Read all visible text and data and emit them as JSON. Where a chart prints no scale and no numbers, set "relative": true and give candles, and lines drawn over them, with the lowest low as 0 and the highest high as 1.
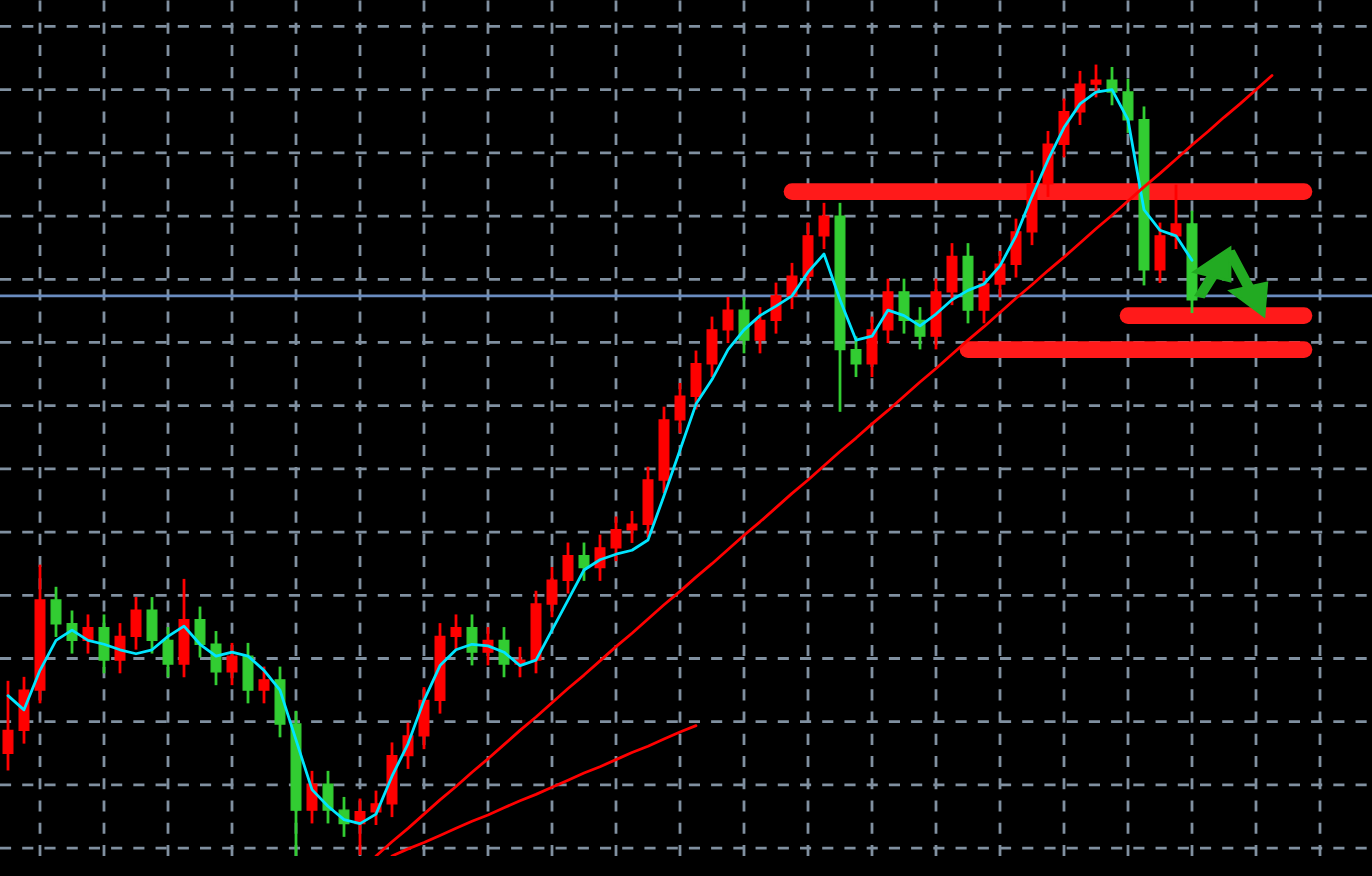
{
  "chart_data": {
    "type": "candlestick",
    "relative": true,
    "tick_labels": false,
    "grid": true,
    "categories": [
      null,
      null,
      null,
      null,
      null,
      null,
      null,
      null,
      null,
      null,
      null,
      null,
      null,
      null,
      null,
      null,
      null,
      null,
      null,
      null,
      null,
      null,
      null,
      null,
      null,
      null,
      null,
      null,
      null,
      null,
      null,
      null,
      null,
      null,
      null,
      null,
      null,
      null,
      null,
      null,
      null,
      null,
      null,
      null,
      null,
      null,
      null,
      null,
      null,
      null,
      null,
      null,
      null,
      null,
      null,
      null,
      null,
      null,
      null,
      null,
      null,
      null,
      null,
      null,
      null,
      null,
      null,
      null,
      null,
      null,
      null,
      null,
      null,
      null,
      null,
      null,
      null,
      null,
      null,
      null,
      null,
      null
    ],
    "ohlc": [
      [
        0.13,
        0.22,
        0.11,
        0.159
      ],
      [
        0.159,
        0.225,
        0.144,
        0.21
      ],
      [
        0.21,
        0.367,
        0.195,
        0.324
      ],
      [
        0.324,
        0.339,
        0.279,
        0.294
      ],
      [
        0.294,
        0.309,
        0.258,
        0.273
      ],
      [
        0.273,
        0.304,
        0.258,
        0.289
      ],
      [
        0.289,
        0.304,
        0.233,
        0.248
      ],
      [
        0.248,
        0.293,
        0.233,
        0.278
      ],
      [
        0.278,
        0.326,
        0.263,
        0.311
      ],
      [
        0.311,
        0.326,
        0.258,
        0.273
      ],
      [
        0.273,
        0.288,
        0.228,
        0.243
      ],
      [
        0.243,
        0.349,
        0.228,
        0.299
      ],
      [
        0.299,
        0.314,
        0.253,
        0.268
      ],
      [
        0.268,
        0.283,
        0.218,
        0.233
      ],
      [
        0.233,
        0.268,
        0.218,
        0.253
      ],
      [
        0.253,
        0.268,
        0.195,
        0.21
      ],
      [
        0.21,
        0.238,
        0.195,
        0.223
      ],
      [
        0.223,
        0.238,
        0.152,
        0.167
      ],
      [
        0.167,
        0.182,
        0,
        0.058
      ],
      [
        0.058,
        0.106,
        0.043,
        0.091
      ],
      [
        0.091,
        0.106,
        0.043,
        0.058
      ],
      [
        0.058,
        0.073,
        0.026,
        0.041
      ],
      [
        0.041,
        0.071,
        0.003,
        0.056
      ],
      [
        0.056,
        0.081,
        0.041,
        0.066
      ],
      [
        0.066,
        0.142,
        0.051,
        0.127
      ],
      [
        0.127,
        0.167,
        0.112,
        0.152
      ],
      [
        0.152,
        0.212,
        0.137,
        0.197
      ],
      [
        0.197,
        0.293,
        0.182,
        0.278
      ],
      [
        0.278,
        0.304,
        0.263,
        0.289
      ],
      [
        0.289,
        0.304,
        0.243,
        0.258
      ],
      [
        0.258,
        0.288,
        0.243,
        0.273
      ],
      [
        0.273,
        0.288,
        0.228,
        0.243
      ],
      [
        0.243,
        0.263,
        0.228,
        0.248
      ],
      [
        0.248,
        0.334,
        0.233,
        0.319
      ],
      [
        0.319,
        0.364,
        0.304,
        0.349
      ],
      [
        0.349,
        0.395,
        0.334,
        0.38
      ],
      [
        0.38,
        0.395,
        0.35,
        0.365
      ],
      [
        0.365,
        0.405,
        0.35,
        0.39
      ],
      [
        0.39,
        0.428,
        0.375,
        0.413
      ],
      [
        0.413,
        0.435,
        0.398,
        0.42
      ],
      [
        0.42,
        0.491,
        0.405,
        0.476
      ],
      [
        0.476,
        0.567,
        0.461,
        0.552
      ],
      [
        0.552,
        0.597,
        0.537,
        0.582
      ],
      [
        0.582,
        0.638,
        0.567,
        0.623
      ],
      [
        0.623,
        0.681,
        0.608,
        0.666
      ],
      [
        0.666,
        0.706,
        0.651,
        0.691
      ],
      [
        0.691,
        0.706,
        0.638,
        0.653
      ],
      [
        0.653,
        0.693,
        0.638,
        0.678
      ],
      [
        0.678,
        0.724,
        0.663,
        0.709
      ],
      [
        0.709,
        0.749,
        0.694,
        0.734
      ],
      [
        0.734,
        0.8,
        0.719,
        0.785
      ],
      [
        0.785,
        0.825,
        0.77,
        0.81
      ],
      [
        0.81,
        0.825,
        0.564,
        0.641
      ],
      [
        0.641,
        0.656,
        0.608,
        0.623
      ],
      [
        0.623,
        0.681,
        0.608,
        0.666
      ],
      [
        0.666,
        0.729,
        0.651,
        0.714
      ],
      [
        0.714,
        0.729,
        0.663,
        0.678
      ],
      [
        0.678,
        0.693,
        0.643,
        0.658
      ],
      [
        0.658,
        0.729,
        0.643,
        0.714
      ],
      [
        0.714,
        0.774,
        0.699,
        0.759
      ],
      [
        0.759,
        0.774,
        0.676,
        0.691
      ],
      [
        0.691,
        0.739,
        0.676,
        0.724
      ],
      [
        0.724,
        0.764,
        0.709,
        0.749
      ],
      [
        0.749,
        0.805,
        0.734,
        0.79
      ],
      [
        0.79,
        0.866,
        0.775,
        0.851
      ],
      [
        0.851,
        0.916,
        0.836,
        0.901
      ],
      [
        0.901,
        0.957,
        0.886,
        0.942
      ],
      [
        0.942,
        0.992,
        0.927,
        0.977
      ],
      [
        0.977,
        1,
        0.962,
        0.982
      ],
      [
        0.982,
        0.997,
        0.952,
        0.967
      ],
      [
        0.967,
        0.982,
        0.917,
        0.932
      ],
      [
        0.932,
        0.947,
        0.724,
        0.742
      ],
      [
        0.742,
        0.8,
        0.727,
        0.785
      ],
      [
        0.785,
        0.848,
        0.77,
        0.8
      ],
      [
        0.8,
        0.815,
        0.689,
        0.704
      ],
      null,
      null,
      null,
      null,
      null,
      null,
      null
    ],
    "colors": [
      "#ff0000",
      "#ff0000",
      "#ff0000",
      "#32cd32",
      "#32cd32",
      "#ff0000",
      "#32cd32",
      "#ff0000",
      "#ff0000",
      "#32cd32",
      "#32cd32",
      "#ff0000",
      "#32cd32",
      "#32cd32",
      "#ff0000",
      "#32cd32",
      "#ff0000",
      "#32cd32",
      "#32cd32",
      "#ff0000",
      "#32cd32",
      "#32cd32",
      "#ff0000",
      "#ff0000",
      "#ff0000",
      "#ff0000",
      "#ff0000",
      "#ff0000",
      "#ff0000",
      "#32cd32",
      "#ff0000",
      "#32cd32",
      "#ff0000",
      "#ff0000",
      "#ff0000",
      "#ff0000",
      "#32cd32",
      "#ff0000",
      "#ff0000",
      "#ff0000",
      "#ff0000",
      "#ff0000",
      "#ff0000",
      "#ff0000",
      "#ff0000",
      "#ff0000",
      "#32cd32",
      "#ff0000",
      "#ff0000",
      "#ff0000",
      "#ff0000",
      "#ff0000",
      "#32cd32",
      "#32cd32",
      "#ff0000",
      "#ff0000",
      "#32cd32",
      "#32cd32",
      "#ff0000",
      "#ff0000",
      "#32cd32",
      "#ff0000",
      "#ff0000",
      "#ff0000",
      "#ff0000",
      "#ff0000",
      "#ff0000",
      "#ff0000",
      "#ff0000",
      "#32cd32",
      "#32cd32",
      "#32cd32",
      "#ff0000",
      "#ff0000",
      "#32cd32",
      null,
      null,
      null,
      null,
      null,
      null,
      null
    ],
    "series": [
      {
        "type": "line",
        "color": "#00e5ff",
        "values": [
          0.203,
          0.185,
          0.235,
          0.273,
          0.286,
          0.273,
          0.268,
          0.261,
          0.256,
          0.261,
          0.278,
          0.291,
          0.268,
          0.253,
          0.258,
          0.253,
          0.235,
          0.21,
          0.147,
          0.084,
          0.063,
          0.046,
          0.041,
          0.053,
          0.101,
          0.142,
          0.197,
          0.241,
          0.261,
          0.268,
          0.266,
          0.258,
          0.241,
          0.248,
          0.286,
          0.324,
          0.362,
          0.375,
          0.382,
          0.387,
          0.4,
          0.456,
          0.514,
          0.572,
          0.603,
          0.641,
          0.666,
          0.684,
          0.696,
          0.709,
          0.739,
          0.762,
          0.704,
          0.653,
          0.658,
          0.691,
          0.684,
          0.671,
          0.686,
          0.704,
          0.716,
          0.724,
          0.747,
          0.785,
          0.835,
          0.881,
          0.922,
          0.952,
          0.967,
          0.97,
          0.932,
          0.818,
          0.792,
          0.785,
          0.754,
          null,
          null,
          null,
          null,
          null,
          null,
          null
        ]
      },
      {
        "type": "line",
        "color": "#ff0000",
        "values": [
          null,
          null,
          null,
          null,
          null,
          null,
          null,
          null,
          null,
          null,
          null,
          null,
          null,
          null,
          null,
          null,
          null,
          null,
          null,
          null,
          null,
          null,
          null,
          0,
          0.018,
          0.035,
          0.053,
          0.071,
          0.088,
          0.106,
          0.123,
          0.141,
          0.159,
          0.176,
          0.194,
          0.212,
          0.229,
          0.247,
          0.265,
          0.282,
          0.3,
          0.318,
          0.335,
          0.353,
          0.37,
          0.388,
          0.406,
          0.423,
          0.441,
          0.459,
          0.476,
          0.494,
          0.512,
          0.529,
          0.547,
          0.564,
          0.582,
          0.6,
          0.617,
          0.635,
          0.653,
          0.67,
          0.688,
          0.706,
          0.723,
          0.741,
          0.758,
          0.776,
          0.794,
          0.811,
          0.829,
          0.847,
          0.864,
          0.882,
          0.9,
          0.917,
          0.935,
          0.952,
          0.97,
          0.988,
          null,
          null
        ]
      },
      {
        "type": "line",
        "color": "#ff0000",
        "values": [
          null,
          null,
          null,
          null,
          null,
          null,
          null,
          null,
          null,
          null,
          null,
          null,
          null,
          null,
          null,
          null,
          null,
          null,
          null,
          null,
          null,
          null,
          null,
          null,
          0,
          0.009,
          0.017,
          0.026,
          0.035,
          0.044,
          0.052,
          0.061,
          0.07,
          0.078,
          0.087,
          0.096,
          0.105,
          0.113,
          0.122,
          0.131,
          0.139,
          0.148,
          0.157,
          0.165,
          null,
          null,
          null,
          null,
          null,
          null,
          null,
          null,
          null,
          null,
          null,
          null,
          null,
          null,
          null,
          null,
          null,
          null,
          null,
          null,
          null,
          null,
          null,
          null,
          null,
          null,
          null,
          null,
          null,
          null,
          null,
          null,
          null,
          null,
          null,
          null,
          null,
          null
        ]
      },
      {
        "type": "line",
        "color": "#ff1a1a",
        "values": [
          null,
          null,
          null,
          null,
          null,
          null,
          null,
          null,
          null,
          null,
          null,
          null,
          null,
          null,
          null,
          null,
          null,
          null,
          null,
          null,
          null,
          null,
          null,
          null,
          null,
          null,
          null,
          null,
          null,
          null,
          null,
          null,
          null,
          null,
          null,
          null,
          null,
          null,
          null,
          null,
          null,
          null,
          null,
          null,
          null,
          null,
          null,
          null,
          null,
          0.841,
          0.841,
          0.841,
          0.841,
          0.841,
          0.841,
          0.841,
          0.841,
          0.841,
          0.841,
          0.841,
          0.841,
          0.841,
          0.841,
          0.841,
          0.841,
          0.841,
          0.841,
          0.841,
          0.841,
          0.841,
          0.841,
          0.841,
          0.841,
          0.841,
          0.841,
          0.841,
          0.841,
          0.841,
          0.841,
          0.841,
          0.841,
          0.841
        ]
      },
      {
        "type": "line",
        "color": "#ff1a1a",
        "values": [
          null,
          null,
          null,
          null,
          null,
          null,
          null,
          null,
          null,
          null,
          null,
          null,
          null,
          null,
          null,
          null,
          null,
          null,
          null,
          null,
          null,
          null,
          null,
          null,
          null,
          null,
          null,
          null,
          null,
          null,
          null,
          null,
          null,
          null,
          null,
          null,
          null,
          null,
          null,
          null,
          null,
          null,
          null,
          null,
          null,
          null,
          null,
          null,
          null,
          null,
          null,
          null,
          null,
          null,
          null,
          null,
          null,
          null,
          null,
          null,
          0.641,
          0.641,
          0.641,
          0.641,
          0.641,
          0.641,
          0.641,
          0.641,
          0.641,
          0.641,
          0.641,
          0.641,
          0.641,
          0.641,
          0.641,
          0.641,
          0.641,
          0.641,
          0.641,
          0.641,
          0.641,
          0.641
        ]
      },
      {
        "type": "line",
        "color": "#ff1a1a",
        "values": [
          null,
          null,
          null,
          null,
          null,
          null,
          null,
          null,
          null,
          null,
          null,
          null,
          null,
          null,
          null,
          null,
          null,
          null,
          null,
          null,
          null,
          null,
          null,
          null,
          null,
          null,
          null,
          null,
          null,
          null,
          null,
          null,
          null,
          null,
          null,
          null,
          null,
          null,
          null,
          null,
          null,
          null,
          null,
          null,
          null,
          null,
          null,
          null,
          null,
          null,
          null,
          null,
          null,
          null,
          null,
          null,
          null,
          null,
          null,
          null,
          null,
          null,
          null,
          null,
          null,
          null,
          null,
          null,
          null,
          null,
          0.684,
          0.684,
          0.684,
          0.684,
          0.684,
          0.684,
          0.684,
          0.684,
          0.684,
          0.684,
          0.684,
          0.684
        ]
      }
    ],
    "ref_lines": [
      {
        "axis": "y",
        "value": 0.709,
        "color": "#6a8cbf"
      }
    ]
  }
}
